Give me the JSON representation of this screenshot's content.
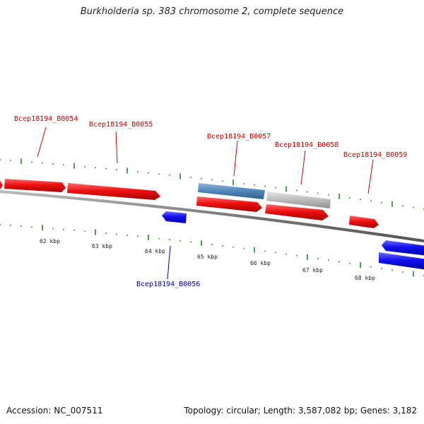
{
  "title": "Burkholderia sp. 383 chromosome 2, complete sequence",
  "footer": {
    "accession": "Accession: NC_007511",
    "summary": "Topology: circular; Length: 3,587,082 bp; Genes: 3,182"
  },
  "colors": {
    "forward_gene": "#ee1111",
    "reverse_gene": "#1111ee",
    "highlight_gene": "#4f86b8",
    "pseudo_gene": "#bbbbbb",
    "forward_label": "#cc0000",
    "reverse_label": "#000099",
    "tick": "#228822",
    "backbone": "#888888"
  },
  "scale": {
    "unit": "kbp",
    "labels": [
      "62 kbp",
      "63 kbp",
      "64 kbp",
      "65 kbp",
      "66 kbp",
      "67 kbp",
      "68 kbp"
    ]
  },
  "genes": [
    {
      "id": "g1",
      "strand": "+",
      "label": "",
      "type": "cds"
    },
    {
      "id": "g2",
      "strand": "+",
      "label": "Bcep18194_B0054",
      "type": "cds"
    },
    {
      "id": "g3",
      "strand": "+",
      "label": "Bcep18194_B0055",
      "type": "cds"
    },
    {
      "id": "g4",
      "strand": "-",
      "label": "Bcep18194_B0056",
      "type": "cds"
    },
    {
      "id": "g5",
      "strand": "+",
      "label": "Bcep18194_B0057",
      "type": "cds"
    },
    {
      "id": "g5b",
      "strand": "+",
      "label": "",
      "type": "highlight"
    },
    {
      "id": "g6",
      "strand": "+",
      "label": "Bcep18194_B0058",
      "type": "cds"
    },
    {
      "id": "g6b",
      "strand": "+",
      "label": "",
      "type": "pseudo"
    },
    {
      "id": "g7",
      "strand": "+",
      "label": "Bcep18194_B0059",
      "type": "cds"
    },
    {
      "id": "g8",
      "strand": "-",
      "label": "",
      "type": "cds"
    },
    {
      "id": "g9",
      "strand": "-",
      "label": "",
      "type": "cds"
    }
  ]
}
